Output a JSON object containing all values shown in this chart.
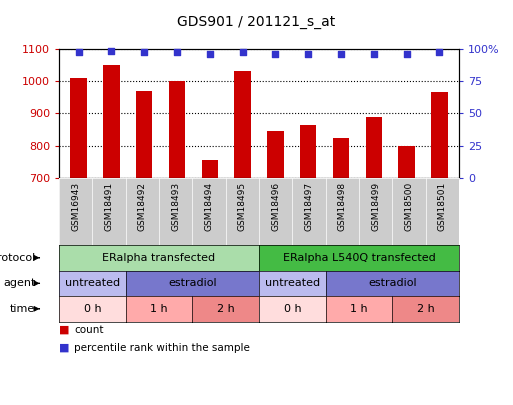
{
  "title": "GDS901 / 201121_s_at",
  "samples": [
    "GSM16943",
    "GSM18491",
    "GSM18492",
    "GSM18493",
    "GSM18494",
    "GSM18495",
    "GSM18496",
    "GSM18497",
    "GSM18498",
    "GSM18499",
    "GSM18500",
    "GSM18501"
  ],
  "counts": [
    1010,
    1050,
    970,
    1000,
    755,
    1030,
    845,
    865,
    825,
    890,
    800,
    965
  ],
  "percentile_ranks": [
    97,
    98,
    97,
    97,
    96,
    97,
    96,
    96,
    96,
    96,
    96,
    97
  ],
  "ylim_left": [
    700,
    1100
  ],
  "ylim_right": [
    0,
    100
  ],
  "yticks_left": [
    700,
    800,
    900,
    1000,
    1100
  ],
  "yticks_right": [
    0,
    25,
    50,
    75,
    100
  ],
  "bar_color": "#CC0000",
  "dot_color": "#3333CC",
  "protocol_row": [
    {
      "start": 0,
      "end": 6,
      "color": "#AADDAA",
      "label": "ERalpha transfected"
    },
    {
      "start": 6,
      "end": 12,
      "color": "#44BB44",
      "label": "ERalpha L540Q transfected"
    }
  ],
  "agent_row": [
    {
      "start": 0,
      "end": 2,
      "color": "#BBBBEE",
      "label": "untreated"
    },
    {
      "start": 2,
      "end": 6,
      "color": "#7777CC",
      "label": "estradiol"
    },
    {
      "start": 6,
      "end": 8,
      "color": "#BBBBEE",
      "label": "untreated"
    },
    {
      "start": 8,
      "end": 12,
      "color": "#7777CC",
      "label": "estradiol"
    }
  ],
  "time_row": [
    {
      "start": 0,
      "end": 2,
      "color": "#FFDDDD",
      "label": "0 h"
    },
    {
      "start": 2,
      "end": 4,
      "color": "#FFAAAA",
      "label": "1 h"
    },
    {
      "start": 4,
      "end": 6,
      "color": "#EE8888",
      "label": "2 h"
    },
    {
      "start": 6,
      "end": 8,
      "color": "#FFDDDD",
      "label": "0 h"
    },
    {
      "start": 8,
      "end": 10,
      "color": "#FFAAAA",
      "label": "1 h"
    },
    {
      "start": 10,
      "end": 12,
      "color": "#EE8888",
      "label": "2 h"
    }
  ],
  "xtick_bg": "#CCCCCC",
  "legend_count_color": "#CC0000",
  "legend_dot_color": "#3333CC"
}
